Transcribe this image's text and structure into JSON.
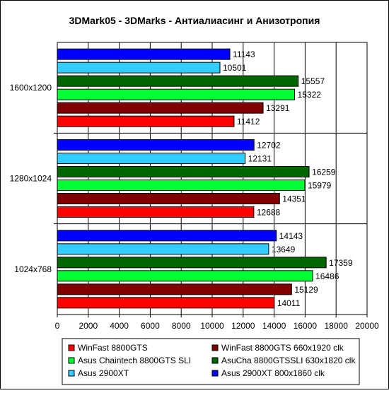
{
  "chart_data": {
    "type": "bar",
    "orientation": "horizontal",
    "title": "3DMark05 - 3DMarks - Антиалиасинг и Анизотропия",
    "xlabel": "",
    "ylabel": "",
    "xlim": [
      0,
      20000
    ],
    "x_ticks": [
      "0",
      "2000",
      "4000",
      "6000",
      "8000",
      "10000",
      "12000",
      "14000",
      "16000",
      "18000",
      "20000"
    ],
    "grid": "vertical",
    "legend_position": "bottom",
    "categories": [
      "1600x1200",
      "1280x1024",
      "1024x768"
    ],
    "series": [
      {
        "name": "Asus 2900XT 800x1860 clk",
        "color": "#0000ff",
        "values": [
          11143,
          12702,
          14143
        ]
      },
      {
        "name": "Asus 2900XT",
        "color": "#33ccff",
        "values": [
          10501,
          12131,
          13649
        ]
      },
      {
        "name": "AsuCha 8800GTSSLI 630x1820 clk",
        "color": "#006600",
        "values": [
          15557,
          16259,
          17359
        ]
      },
      {
        "name": "Asus Chaintech 8800GTS SLI",
        "color": "#00ff33",
        "values": [
          15322,
          15979,
          16486
        ]
      },
      {
        "name": "WinFast 8800GTS 660x1920 clk",
        "color": "#800000",
        "values": [
          13291,
          14351,
          15129
        ]
      },
      {
        "name": "WinFast 8800GTS",
        "color": "#ff0000",
        "values": [
          11412,
          12688,
          14011
        ]
      }
    ],
    "legend_order": [
      "WinFast 8800GTS",
      "WinFast 8800GTS 660x1920 clk",
      "Asus Chaintech 8800GTS SLI",
      "AsuCha 8800GTSSLI 630x1820 clk",
      "Asus 2900XT",
      "Asus 2900XT 800x1860 clk"
    ]
  }
}
